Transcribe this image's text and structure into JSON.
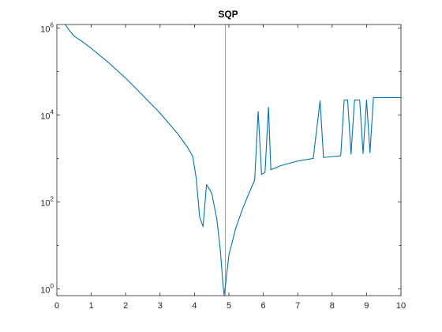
{
  "chart_data": {
    "type": "line",
    "title": "SQP",
    "xlabel": "",
    "ylabel": "",
    "xlim": [
      0,
      10
    ],
    "ylim": [
      0.7,
      1200000
    ],
    "yscale": "log",
    "grid": false,
    "x_ticks": [
      0,
      1,
      2,
      3,
      4,
      5,
      6,
      7,
      8,
      9,
      10
    ],
    "x_tick_labels": [
      "0",
      "1",
      "2",
      "3",
      "4",
      "5",
      "6",
      "7",
      "8",
      "9",
      "10"
    ],
    "y_ticks": [
      {
        "value": 1,
        "base": "10",
        "exp": "0"
      },
      {
        "value": 100,
        "base": "10",
        "exp": "2"
      },
      {
        "value": 10000,
        "base": "10",
        "exp": "4"
      },
      {
        "value": 1000000,
        "base": "10",
        "exp": "6"
      }
    ],
    "vline": {
      "x": 4.9,
      "color": "#808080"
    },
    "series": [
      {
        "color": "#0072bd",
        "points": [
          [
            0.25,
            1200000
          ],
          [
            0.35,
            900000
          ],
          [
            0.5,
            650000
          ],
          [
            0.75,
            480000
          ],
          [
            1.0,
            340000
          ],
          [
            1.5,
            160000
          ],
          [
            2.0,
            70000
          ],
          [
            2.5,
            28000
          ],
          [
            3.0,
            11000
          ],
          [
            3.5,
            3800
          ],
          [
            3.8,
            1800
          ],
          [
            3.95,
            1100
          ],
          [
            4.05,
            350
          ],
          [
            4.15,
            45
          ],
          [
            4.25,
            27
          ],
          [
            4.35,
            250
          ],
          [
            4.5,
            160
          ],
          [
            4.65,
            40
          ],
          [
            4.75,
            8
          ],
          [
            4.82,
            1.5
          ],
          [
            4.86,
            0.72
          ],
          [
            4.9,
            1.2
          ],
          [
            5.0,
            6
          ],
          [
            5.2,
            25
          ],
          [
            5.4,
            70
          ],
          [
            5.6,
            170
          ],
          [
            5.75,
            320
          ],
          [
            5.85,
            12000
          ],
          [
            5.95,
            430
          ],
          [
            6.05,
            480
          ],
          [
            6.15,
            15000
          ],
          [
            6.22,
            550
          ],
          [
            6.5,
            680
          ],
          [
            7.0,
            870
          ],
          [
            7.45,
            1000
          ],
          [
            7.65,
            21000
          ],
          [
            7.75,
            1050
          ],
          [
            8.0,
            1100
          ],
          [
            8.25,
            1150
          ],
          [
            8.35,
            22000
          ],
          [
            8.45,
            22000
          ],
          [
            8.55,
            1250
          ],
          [
            8.65,
            22000
          ],
          [
            8.8,
            22000
          ],
          [
            8.9,
            1300
          ],
          [
            9.0,
            22000
          ],
          [
            9.1,
            1350
          ],
          [
            9.2,
            25000
          ],
          [
            10.0,
            25000
          ]
        ]
      }
    ]
  }
}
